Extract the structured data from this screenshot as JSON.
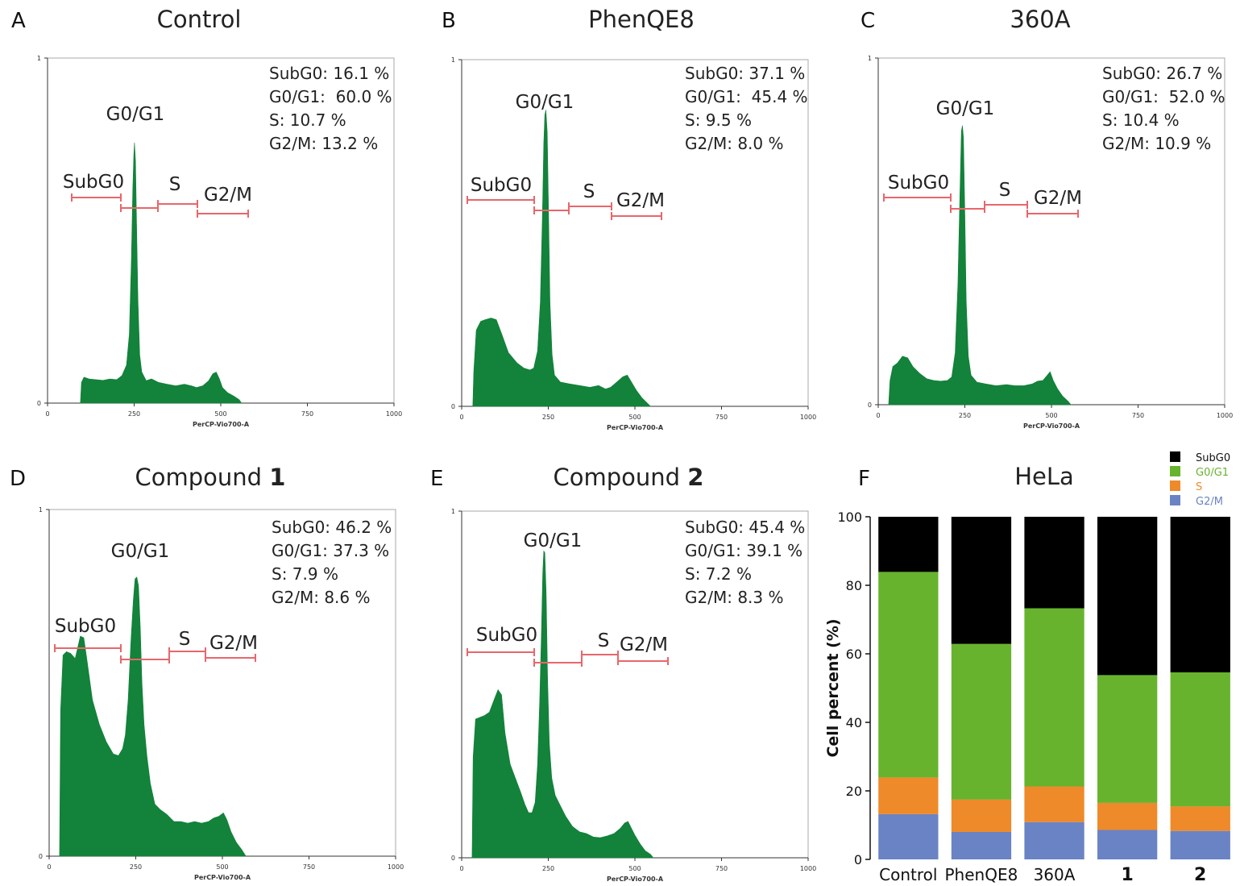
{
  "colors": {
    "histogram_fill": "#13823a",
    "gate": "#e8666b",
    "subg0": "#000000",
    "g0g1": "#67b32e",
    "s": "#ee8a2a",
    "g2m": "#6a83c4"
  },
  "flow_panels": [
    {
      "letter": "A",
      "title": "Control",
      "title_number": "",
      "stats": [
        "SubG0: 16.1 %",
        "G0/G1:  60.0 %",
        "S: 10.7 %",
        "G2/M: 13.2 %"
      ],
      "gates": {
        "subg0": "SubG0",
        "g0g1": "G0/G1",
        "s": "S",
        "g2m": "G2/M"
      },
      "y_ticks": [
        "1",
        "0"
      ],
      "x_ticks": [
        "0",
        "250",
        "500",
        "750",
        "1000"
      ],
      "xlabel": "PerCP-Vio700-A"
    },
    {
      "letter": "B",
      "title": "PhenQE8",
      "title_number": "",
      "stats": [
        "SubG0: 37.1 %",
        "G0/G1:  45.4 %",
        "S: 9.5 %",
        "G2/M: 8.0 %"
      ],
      "gates": {
        "subg0": "SubG0",
        "g0g1": "G0/G1",
        "s": "S",
        "g2m": "G2/M"
      },
      "y_ticks": [
        "1",
        "0"
      ],
      "x_ticks": [
        "0",
        "250",
        "500",
        "750",
        "1000"
      ],
      "xlabel": "PerCP-Vio700-A"
    },
    {
      "letter": "C",
      "title": "360A",
      "title_number": "",
      "stats": [
        "SubG0: 26.7 %",
        "G0/G1:  52.0 %",
        "S: 10.4 %",
        "G2/M: 10.9 %"
      ],
      "gates": {
        "subg0": "SubG0",
        "g0g1": "G0/G1",
        "s": "S",
        "g2m": "G2/M"
      },
      "y_ticks": [
        "1",
        "0"
      ],
      "x_ticks": [
        "0",
        "250",
        "500",
        "750",
        "1000"
      ],
      "xlabel": "PerCP-Vio700-A"
    },
    {
      "letter": "D",
      "title": "Compound ",
      "title_number": "1",
      "stats": [
        "SubG0: 46.2 %",
        "G0/G1: 37.3 %",
        "S: 7.9 %",
        "G2/M: 8.6 %"
      ],
      "gates": {
        "subg0": "SubG0",
        "g0g1": "G0/G1",
        "s": "S",
        "g2m": "G2/M"
      },
      "y_ticks": [
        "1",
        "0"
      ],
      "x_ticks": [
        "0",
        "250",
        "500",
        "750",
        "1000"
      ],
      "xlabel": "PerCP-Vio700-A"
    },
    {
      "letter": "E",
      "title": "Compound ",
      "title_number": "2",
      "stats": [
        "SubG0: 45.4 %",
        "G0/G1: 39.1 %",
        "S: 7.2 %",
        "G2/M: 8.3 %"
      ],
      "gates": {
        "subg0": "SubG0",
        "g0g1": "G0/G1",
        "s": "S",
        "g2m": "G2/M"
      },
      "y_ticks": [
        "1",
        "0"
      ],
      "x_ticks": [
        "0",
        "250",
        "500",
        "750",
        "1000"
      ],
      "xlabel": "PerCP-Vio700-A"
    }
  ],
  "bar_panel": {
    "letter": "F",
    "title": "HeLa",
    "legend": [
      "SubG0",
      "G0/G1",
      "S",
      "G2/M"
    ]
  },
  "chart_data": [
    {
      "type": "bar",
      "stacked": true,
      "title": "HeLa",
      "xlabel": "",
      "ylabel": "Cell percent (%)",
      "ylim": [
        0,
        100
      ],
      "y_ticks": [
        0,
        20,
        40,
        60,
        80,
        100
      ],
      "categories": [
        "Control",
        "PhenQE8",
        "360A",
        "1",
        "2"
      ],
      "series": [
        {
          "name": "G2/M",
          "values": [
            13.2,
            8.0,
            10.9,
            8.6,
            8.3
          ]
        },
        {
          "name": "S",
          "values": [
            10.7,
            9.5,
            10.4,
            7.9,
            7.2
          ]
        },
        {
          "name": "G0/G1",
          "values": [
            60.0,
            45.4,
            52.0,
            37.3,
            39.1
          ]
        },
        {
          "name": "SubG0",
          "values": [
            16.1,
            37.1,
            26.7,
            46.2,
            45.4
          ]
        }
      ],
      "legend_position": "top-right",
      "grid": false
    }
  ]
}
